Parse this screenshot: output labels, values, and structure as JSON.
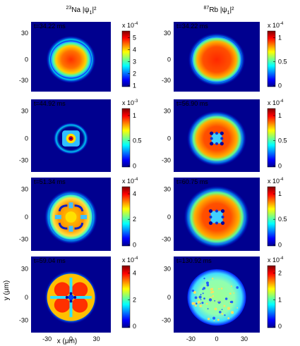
{
  "figure": {
    "columns": [
      {
        "id": "na",
        "title_sup": "23",
        "title_species": "Na",
        "title_rest": " |ψ",
        "title_sub": "1",
        "title_end": "|²",
        "panels": [
          {
            "time": "t=34.22 ms",
            "y_ticks": [
              "30",
              "0",
              "-30"
            ],
            "colorbar": {
              "exp": "x 10",
              "exp_sup": "-4",
              "ticks": [
                "5",
                "4",
                "3",
                "2",
                "1"
              ]
            },
            "pattern": "ring-solid"
          },
          {
            "time": "t=44.92 ms",
            "y_ticks": [
              "30",
              "0",
              "-30"
            ],
            "colorbar": {
              "exp": "x 10",
              "exp_sup": "-3",
              "ticks": [
                "1",
                "0.5",
                "0"
              ]
            },
            "pattern": "vortex-small"
          },
          {
            "time": "t=51.34 ms",
            "y_ticks": [
              "30",
              "0",
              "-30"
            ],
            "colorbar": {
              "exp": "x 10",
              "exp_sup": "-4",
              "ticks": [
                "4",
                "2",
                "0"
              ]
            },
            "pattern": "flower"
          },
          {
            "time": "t=59.04 ms",
            "y_ticks": [
              "30",
              "0",
              "-30"
            ],
            "colorbar": {
              "exp": "x 10",
              "exp_sup": "-4",
              "ticks": [
                "4",
                "2",
                "0"
              ]
            },
            "pattern": "lobes"
          }
        ],
        "x_ticks": [
          "-30",
          "0",
          "30"
        ],
        "xlabel": "x (μm)",
        "ylabel": "y (μm)"
      },
      {
        "id": "rb",
        "title_sup": "87",
        "title_species": "Rb",
        "title_rest": " |ψ",
        "title_sub": "1",
        "title_end": "|²",
        "panels": [
          {
            "time": "t=34.22 ms",
            "y_ticks": [
              "30",
              "0",
              "-30"
            ],
            "colorbar": {
              "exp": "x 10",
              "exp_sup": "-4",
              "ticks": [
                "1",
                "0.5",
                "0"
              ]
            },
            "pattern": "ring-solid-big"
          },
          {
            "time": "t=56.90 ms",
            "y_ticks": [
              "30",
              "0",
              "-30"
            ],
            "colorbar": {
              "exp": "x 10",
              "exp_sup": "-4",
              "ticks": [
                "1",
                "0.5",
                "0"
              ]
            },
            "pattern": "vortex-ring"
          },
          {
            "time": "t=60.75 ms",
            "y_ticks": [
              "30",
              "0",
              "-30"
            ],
            "colorbar": {
              "exp": "x 10",
              "exp_sup": "-4",
              "ticks": [
                "1",
                "0.5",
                "0"
              ]
            },
            "pattern": "vortex-ring-big"
          },
          {
            "time": "t=130.92 ms",
            "y_ticks": [
              "30",
              "0",
              "-30"
            ],
            "colorbar": {
              "exp": "x 10",
              "exp_sup": "-4",
              "ticks": [
                "2",
                "1",
                "0"
              ]
            },
            "pattern": "turbulent"
          }
        ],
        "x_ticks": [
          "-30",
          "0",
          "30"
        ],
        "xlabel": ""
      }
    ]
  }
}
